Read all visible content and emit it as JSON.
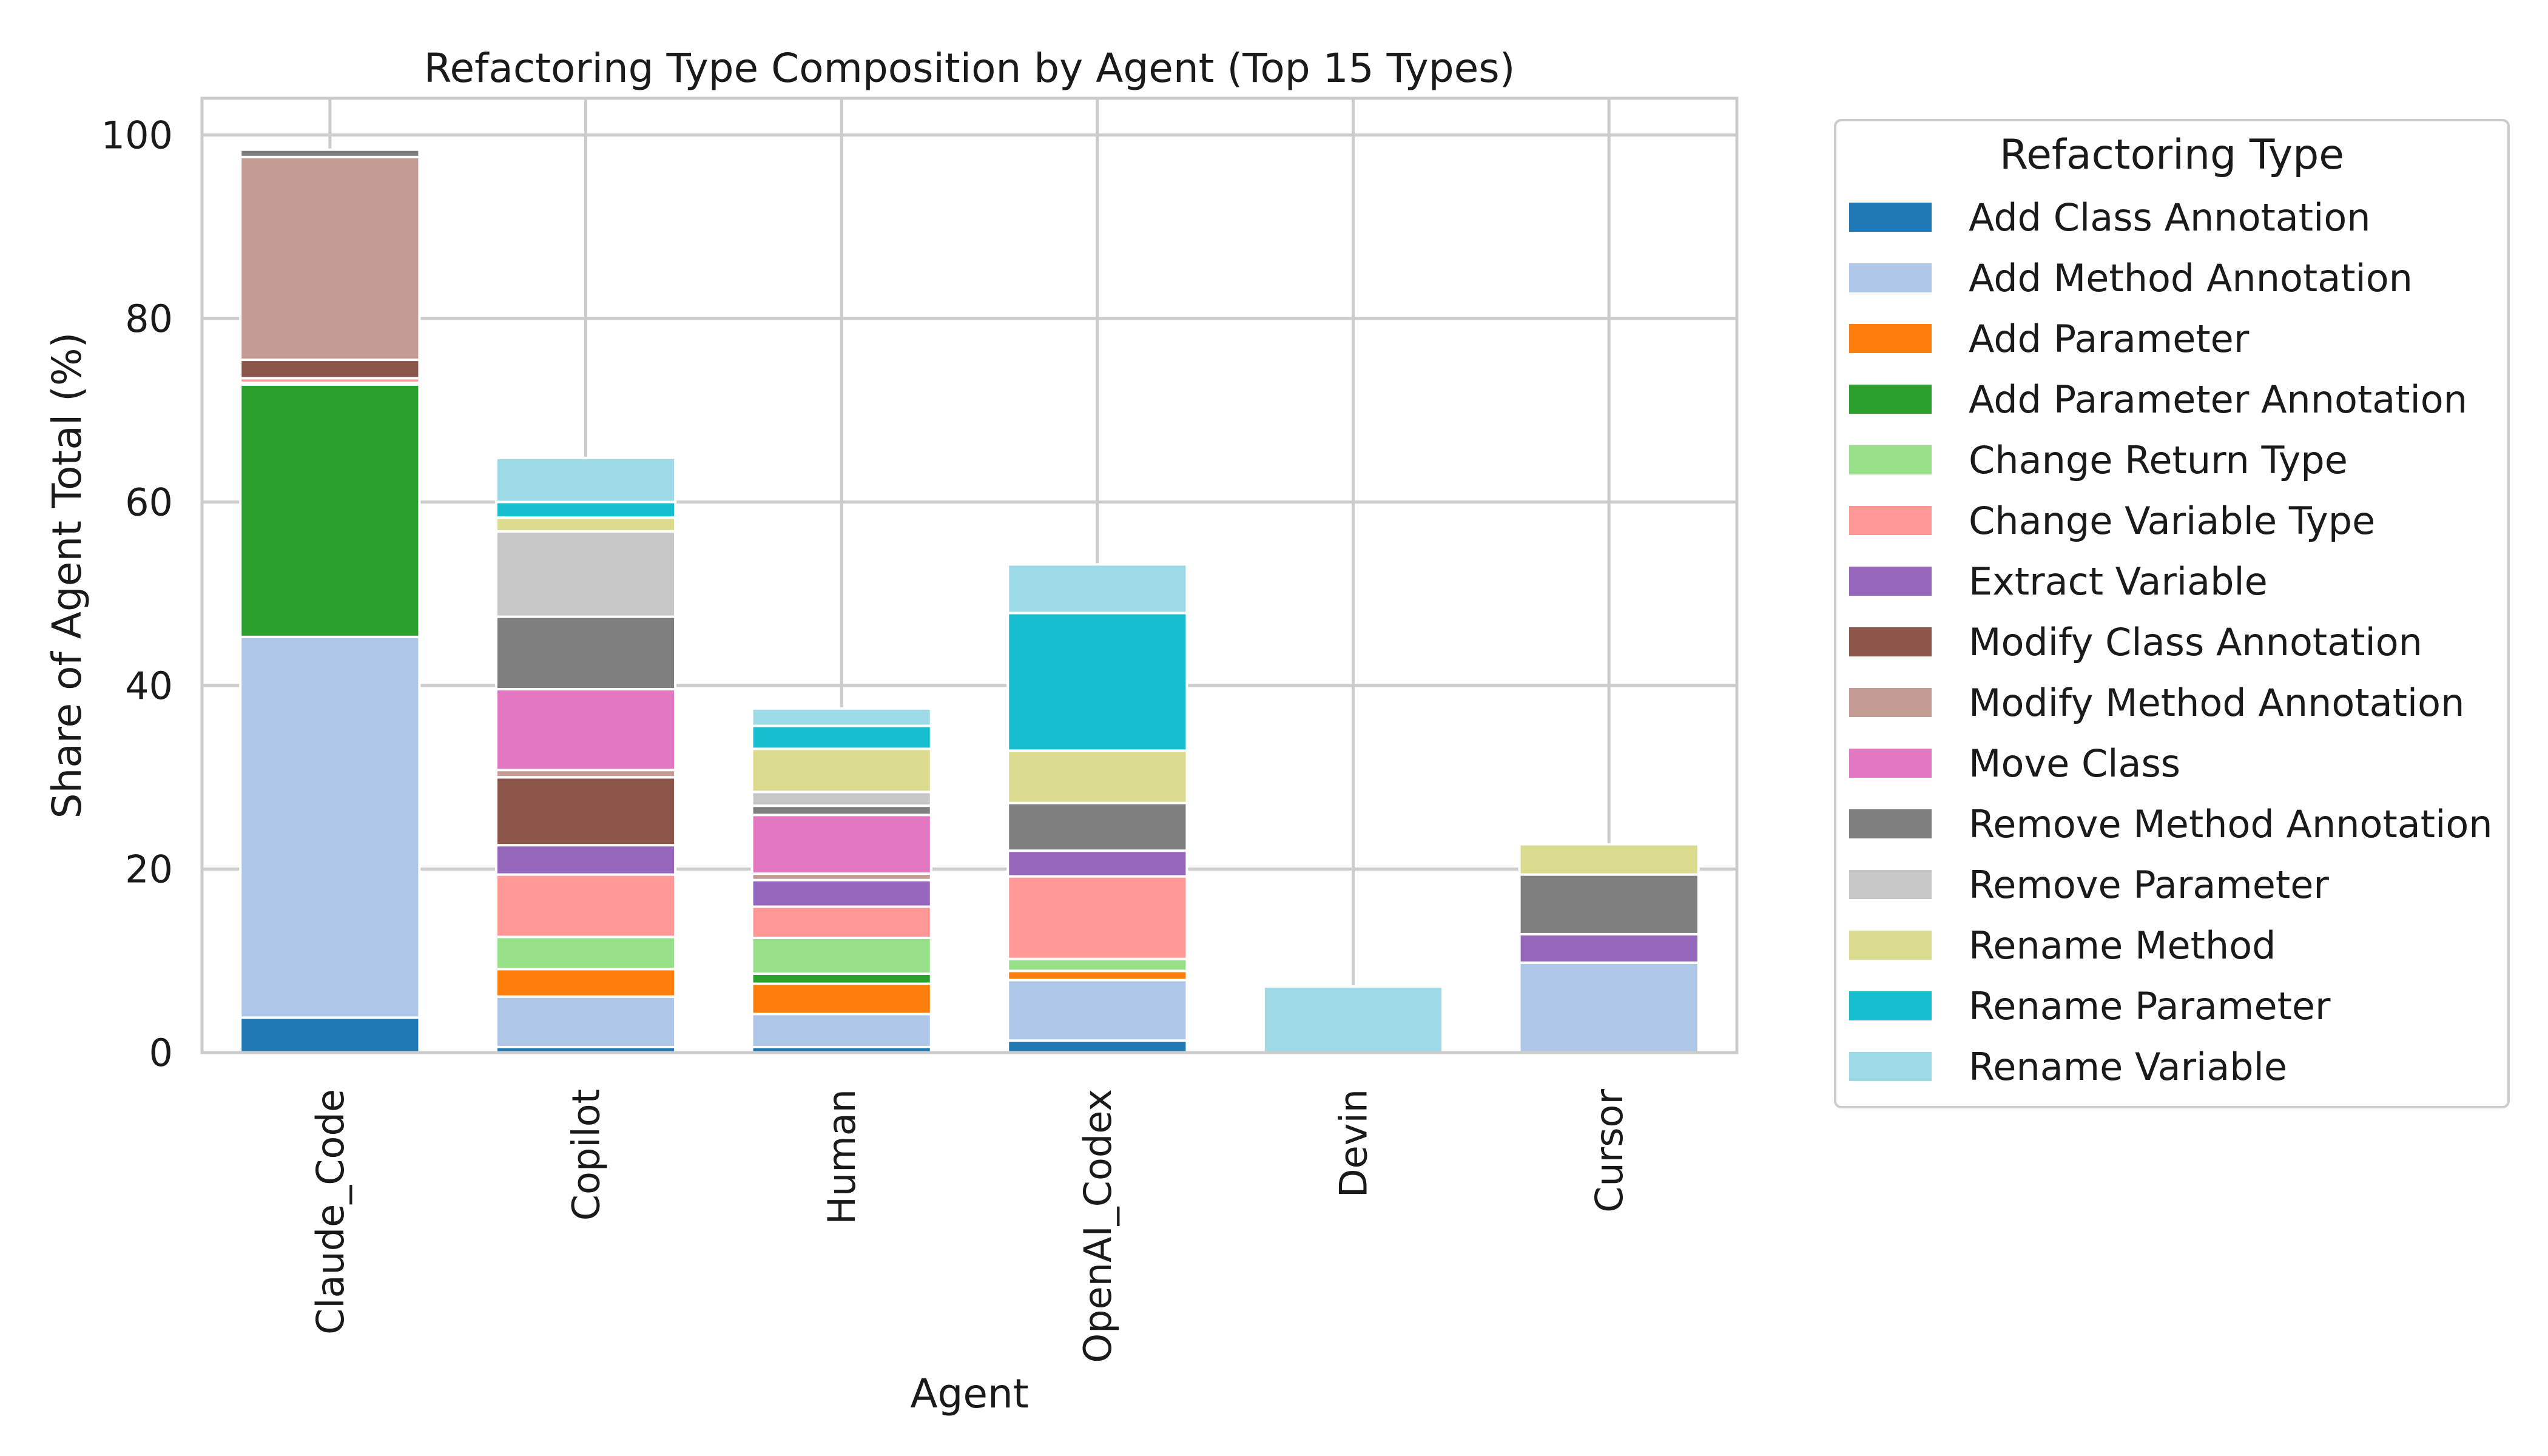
{
  "chart_data": {
    "type": "bar",
    "stacked": true,
    "title": "Refactoring Type Composition by Agent (Top 15 Types)",
    "xlabel": "Agent",
    "ylabel": "Share of Agent Total (%)",
    "ylim": [
      0,
      104
    ],
    "yticks": [
      0,
      20,
      40,
      60,
      80,
      100
    ],
    "grid": true,
    "legend": {
      "title": "Refactoring Type",
      "placement": "outside-right"
    },
    "categories": [
      "Claude_Code",
      "Copilot",
      "Human",
      "OpenAI_Codex",
      "Devin",
      "Cursor"
    ],
    "series": [
      {
        "name": "Add Class Annotation",
        "color": "#1f77b4",
        "values": [
          3.8,
          0.6,
          0.6,
          1.3,
          0,
          0
        ]
      },
      {
        "name": "Add Method Annotation",
        "color": "#aec7e8",
        "values": [
          41.5,
          5.5,
          3.6,
          6.6,
          0,
          9.8
        ]
      },
      {
        "name": "Add Parameter",
        "color": "#ff7f0e",
        "values": [
          0,
          3.0,
          3.3,
          1.0,
          0,
          0
        ]
      },
      {
        "name": "Add Parameter Annotation",
        "color": "#2ca02c",
        "values": [
          27.5,
          0,
          1.1,
          0,
          0,
          0
        ]
      },
      {
        "name": "Change Return Type",
        "color": "#98df8a",
        "values": [
          0.2,
          3.5,
          3.9,
          1.3,
          0,
          0
        ]
      },
      {
        "name": "Change Variable Type",
        "color": "#ff9896",
        "values": [
          0.5,
          6.8,
          3.4,
          9.0,
          0,
          0
        ]
      },
      {
        "name": "Extract Variable",
        "color": "#9467bd",
        "values": [
          0,
          3.2,
          2.9,
          2.8,
          0,
          3.1
        ]
      },
      {
        "name": "Modify Class Annotation",
        "color": "#8c564b",
        "values": [
          2.0,
          7.4,
          0,
          0,
          0,
          0
        ]
      },
      {
        "name": "Modify Method Annotation",
        "color": "#c49c94",
        "values": [
          22.1,
          0.8,
          0.7,
          0,
          0,
          0
        ]
      },
      {
        "name": "Move Class",
        "color": "#e377c2",
        "values": [
          0,
          8.8,
          6.4,
          0,
          0,
          0
        ]
      },
      {
        "name": "Remove Method Annotation",
        "color": "#7f7f7f",
        "values": [
          0.8,
          7.9,
          1.0,
          5.2,
          0,
          6.5
        ]
      },
      {
        "name": "Remove Parameter",
        "color": "#c7c7c7",
        "values": [
          0,
          9.3,
          1.5,
          0,
          0,
          0
        ]
      },
      {
        "name": "Rename Method",
        "color": "#dbdb8d",
        "values": [
          0,
          1.5,
          4.7,
          5.7,
          0,
          3.3
        ]
      },
      {
        "name": "Rename Parameter",
        "color": "#17becf",
        "values": [
          0,
          1.7,
          2.5,
          15.0,
          0,
          0
        ]
      },
      {
        "name": "Rename Variable",
        "color": "#9edae5",
        "values": [
          0,
          4.8,
          1.9,
          5.3,
          7.2,
          0
        ]
      }
    ]
  }
}
